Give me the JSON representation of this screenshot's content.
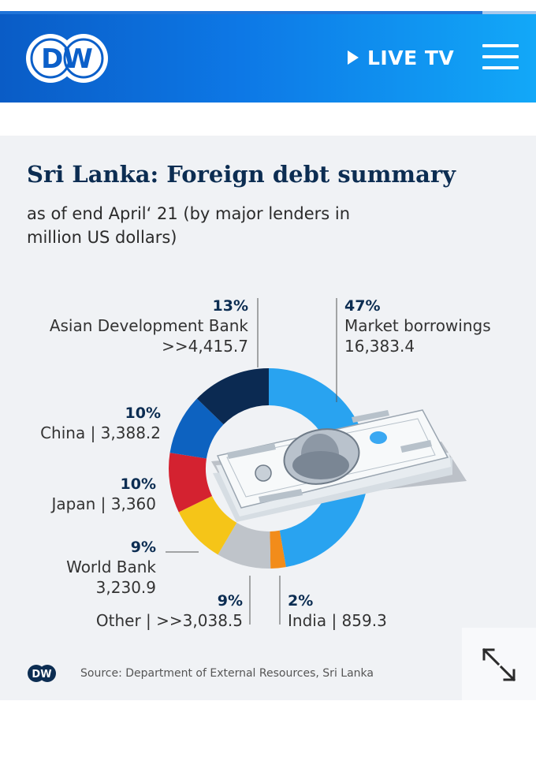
{
  "header": {
    "logo_text": "DW",
    "live_label": "LIVE TV",
    "icons": [
      "play-icon",
      "hamburger-menu-icon"
    ]
  },
  "card": {
    "title": "Sri Lanka: Foreign debt summary",
    "subtitle": "as of end April‘ 21 (by major lenders in million US dollars)",
    "source": "Source: Department of External Resources, Sri Lanka",
    "footer_logo_text": "DW",
    "expand_icon": "expand-arrows-icon"
  },
  "chart_data": {
    "type": "pie",
    "variant": "donut",
    "series": [
      {
        "name": "Market borrowings",
        "value": 16383.4,
        "percent": "47%",
        "value_label": "16,383.4",
        "color": "#29a3f0"
      },
      {
        "name": "India",
        "value": 859.3,
        "percent": "2%",
        "value_label": "India | 859.3",
        "color": "#f28c1a"
      },
      {
        "name": "Other",
        "value": 3038.5,
        "percent": "9%",
        "value_label": "Other |  >>3,038.5",
        "color": "#bfc4ca"
      },
      {
        "name": "World Bank",
        "value": 3230.9,
        "percent": "9%",
        "value_label": "3,230.9",
        "color": "#f5c518"
      },
      {
        "name": "Japan",
        "value": 3360,
        "percent": "10%",
        "value_label": "Japan | 3,360",
        "color": "#d42230"
      },
      {
        "name": "China",
        "value": 3388.2,
        "percent": "10%",
        "value_label": "China | 3,388.2",
        "color": "#0d62c0"
      },
      {
        "name": "Asian Development Bank",
        "value": 4415.7,
        "percent": "13%",
        "value_label": ">>4,415.7",
        "color": "#0b2a52"
      }
    ]
  }
}
